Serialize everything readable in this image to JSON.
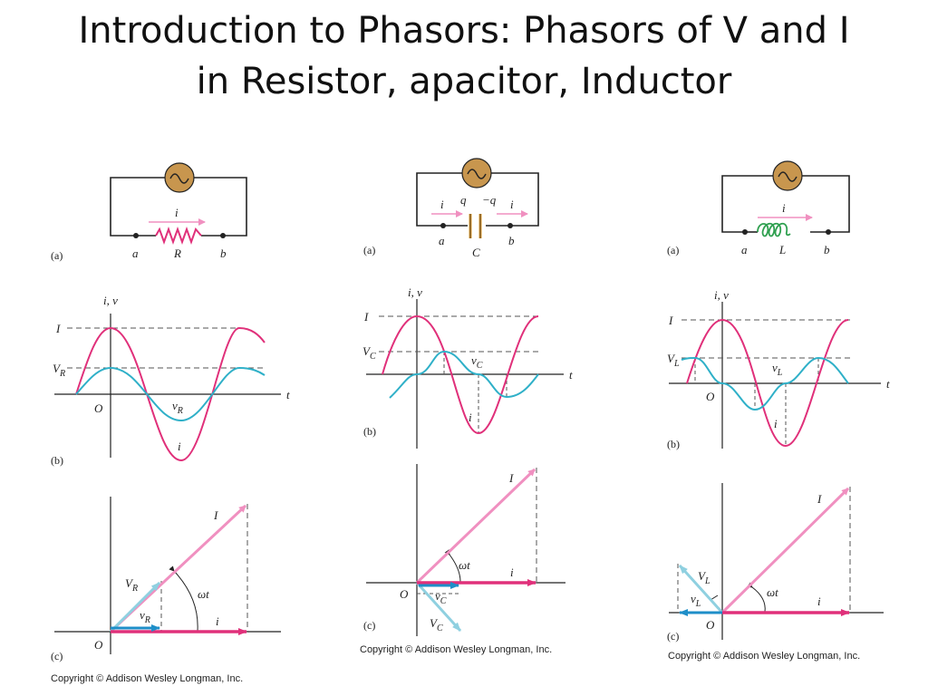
{
  "slide": {
    "title_line1": "Introduction to Phasors: Phasors of V and I",
    "title_line2": "in Resistor, apacitor, Inductor"
  },
  "panels": [
    {
      "element": "resistor",
      "circuit": {
        "label": "(a)",
        "node_a": "a",
        "node_b": "b",
        "component": "R",
        "current": "i"
      },
      "waveform": {
        "label": "(b)",
        "axes_label": "i, v",
        "t_label": "t",
        "origin": "O",
        "peak_current": "I",
        "peak_voltage": "V",
        "peak_voltage_sub": "R",
        "v_curve": "v",
        "v_curve_sub": "R",
        "i_curve": "i"
      },
      "phasor": {
        "label": "(c)",
        "origin": "O",
        "I_label": "I",
        "V_label": "V",
        "V_sub": "R",
        "v_label": "v",
        "v_sub": "R",
        "i_label": "i",
        "angle": "ωt"
      },
      "copyright": "Copyright © Addison Wesley Longman, Inc."
    },
    {
      "element": "capacitor",
      "circuit": {
        "label": "(a)",
        "node_a": "a",
        "node_b": "b",
        "component": "C",
        "current": "i",
        "charge_pos": "q",
        "charge_neg": "−q"
      },
      "waveform": {
        "label": "(b)",
        "axes_label": "i, v",
        "t_label": "t",
        "peak_current": "I",
        "peak_voltage": "V",
        "peak_voltage_sub": "C",
        "v_curve": "v",
        "v_curve_sub": "C",
        "i_curve": "i"
      },
      "phasor": {
        "label": "(c)",
        "origin": "O",
        "I_label": "I",
        "V_label": "V",
        "V_sub": "C",
        "v_label": "v",
        "v_sub": "C",
        "i_label": "i",
        "angle": "ωt"
      },
      "copyright": "Copyright © Addison Wesley Longman, Inc."
    },
    {
      "element": "inductor",
      "circuit": {
        "label": "(a)",
        "node_a": "a",
        "node_b": "b",
        "component": "L",
        "current": "i"
      },
      "waveform": {
        "label": "(b)",
        "axes_label": "i, v",
        "t_label": "t",
        "origin": "O",
        "peak_current": "I",
        "peak_voltage": "V",
        "peak_voltage_sub": "L",
        "v_curve": "v",
        "v_curve_sub": "L",
        "i_curve": "i"
      },
      "phasor": {
        "label": "(c)",
        "origin": "O",
        "I_label": "I",
        "V_label": "V",
        "V_sub": "L",
        "v_label": "v",
        "v_sub": "L",
        "i_label": "i",
        "angle": "ωt"
      },
      "copyright": "Copyright © Addison Wesley Longman, Inc."
    }
  ],
  "colors": {
    "current": "#e0307a",
    "current_phasor": "#f090c0",
    "voltage": "#2fb0c8",
    "voltage_phasor": "#8fd0e0",
    "source_fill": "#c8964e",
    "inductor": "#30a050",
    "capacitor": "#e8a030",
    "axis": "#222222",
    "dashed": "#555555"
  }
}
